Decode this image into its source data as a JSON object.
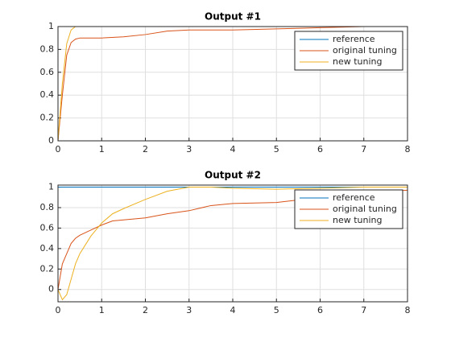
{
  "chart_data": [
    {
      "type": "line",
      "title": "Output #1",
      "x": [
        0,
        0.1,
        0.2,
        0.3,
        0.4,
        0.5,
        1,
        1.5,
        2,
        2.5,
        3,
        3.5,
        4,
        5,
        6,
        7,
        8
      ],
      "series": [
        {
          "name": "reference",
          "color": "#0072bd",
          "values": [
            1,
            1,
            1,
            1,
            1,
            1,
            1,
            1,
            1,
            1,
            1,
            1,
            1,
            1,
            1,
            1,
            1
          ]
        },
        {
          "name": "original tuning",
          "color": "#d95319",
          "values": [
            0,
            0.4,
            0.75,
            0.86,
            0.89,
            0.9,
            0.9,
            0.91,
            0.93,
            0.96,
            0.97,
            0.97,
            0.97,
            0.98,
            0.99,
            1,
            1
          ]
        },
        {
          "name": "new tuning",
          "color": "#edb120",
          "values": [
            0,
            0.5,
            0.85,
            0.97,
            1,
            1,
            1,
            1,
            1,
            1,
            1,
            1,
            1,
            1,
            1,
            1,
            1
          ]
        }
      ],
      "xlim": [
        0,
        8
      ],
      "xticks": [
        0,
        1,
        2,
        3,
        4,
        5,
        6,
        7,
        8
      ],
      "ylim": [
        0,
        1
      ],
      "yticks": [
        0,
        0.2,
        0.4,
        0.6,
        0.8,
        1
      ],
      "grid": true,
      "legend": "northeast"
    },
    {
      "type": "line",
      "title": "Output #2",
      "x": [
        0,
        0.1,
        0.2,
        0.3,
        0.4,
        0.5,
        0.75,
        1,
        1.25,
        1.5,
        2,
        2.5,
        3,
        3.5,
        4,
        5,
        6,
        7,
        8
      ],
      "series": [
        {
          "name": "reference",
          "color": "#0072bd",
          "values": [
            1,
            1,
            1,
            1,
            1,
            1,
            1,
            1,
            1,
            1,
            1,
            1,
            1,
            1,
            1,
            1,
            1,
            1,
            1
          ]
        },
        {
          "name": "original tuning",
          "color": "#d95319",
          "values": [
            0,
            0.25,
            0.35,
            0.45,
            0.5,
            0.53,
            0.58,
            0.63,
            0.67,
            0.68,
            0.7,
            0.74,
            0.77,
            0.82,
            0.84,
            0.85,
            0.9,
            0.95,
            0.97
          ]
        },
        {
          "name": "new tuning",
          "color": "#edb120",
          "values": [
            0,
            -0.1,
            -0.05,
            0.1,
            0.25,
            0.35,
            0.52,
            0.65,
            0.74,
            0.79,
            0.88,
            0.96,
            1,
            1,
            0.99,
            0.98,
            0.99,
            1,
            1
          ]
        }
      ],
      "xlim": [
        0,
        8
      ],
      "xticks": [
        0,
        1,
        2,
        3,
        4,
        5,
        6,
        7,
        8
      ],
      "ylim": [
        -0.12,
        1.02
      ],
      "yticks": [
        0,
        0.2,
        0.4,
        0.6,
        0.8,
        1
      ],
      "grid": true,
      "legend": "northeast"
    }
  ]
}
